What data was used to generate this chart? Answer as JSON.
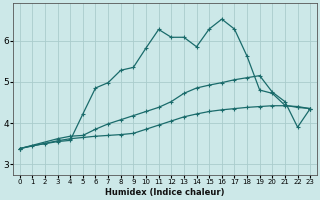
{
  "xlabel": "Humidex (Indice chaleur)",
  "bg_color": "#cce8e8",
  "grid_color": "#aacccc",
  "line_color": "#1a6b6b",
  "xlim": [
    -0.5,
    23.5
  ],
  "ylim": [
    2.75,
    6.9
  ],
  "yticks": [
    3,
    4,
    5,
    6
  ],
  "xticks": [
    0,
    1,
    2,
    3,
    4,
    5,
    6,
    7,
    8,
    9,
    10,
    11,
    12,
    13,
    14,
    15,
    16,
    17,
    18,
    19,
    20,
    21,
    22,
    23
  ],
  "line1_x": [
    0,
    1,
    2,
    3,
    4,
    5,
    6,
    7,
    8,
    9,
    10,
    11,
    12,
    13,
    14,
    15,
    16,
    17,
    18,
    19,
    20,
    21,
    22,
    23
  ],
  "line1_y": [
    3.38,
    3.45,
    3.5,
    3.55,
    3.58,
    4.22,
    4.85,
    4.98,
    5.28,
    5.35,
    5.82,
    6.27,
    6.08,
    6.08,
    5.85,
    6.28,
    6.52,
    6.28,
    5.62,
    4.8,
    4.72,
    4.43,
    4.38,
    4.35
  ],
  "line2_x": [
    0,
    3,
    4,
    5,
    6,
    7,
    8,
    9,
    10,
    11,
    12,
    13,
    14,
    15,
    16,
    17,
    18,
    19,
    20,
    21,
    22,
    23
  ],
  "line2_y": [
    3.38,
    3.57,
    3.62,
    3.65,
    3.68,
    3.7,
    3.72,
    3.75,
    3.85,
    3.95,
    4.05,
    4.15,
    4.22,
    4.28,
    4.32,
    4.35,
    4.38,
    4.4,
    4.42,
    4.42,
    4.4,
    4.35
  ],
  "line3_x": [
    0,
    3,
    4,
    5,
    6,
    7,
    8,
    9,
    10,
    11,
    12,
    13,
    14,
    15,
    16,
    17,
    18,
    19,
    20,
    21,
    22,
    23
  ],
  "line3_y": [
    3.38,
    3.62,
    3.68,
    3.7,
    3.85,
    3.98,
    4.08,
    4.18,
    4.28,
    4.38,
    4.52,
    4.72,
    4.85,
    4.92,
    4.98,
    5.05,
    5.1,
    5.15,
    4.75,
    4.52,
    3.9,
    4.35
  ]
}
